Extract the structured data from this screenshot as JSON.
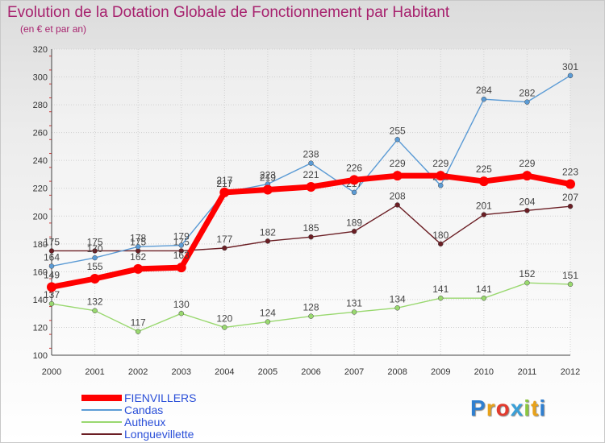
{
  "header": {
    "title": "Evolution de la Dotation Globale de Fonctionnement par Habitant",
    "subtitle": "(en € et par an)"
  },
  "logo": {
    "text": "Proxiti",
    "letter_colors": [
      "#2f7fd0",
      "#e8a21a",
      "#e23b2f",
      "#3aa0d8",
      "#8cc63f",
      "#e8a21a",
      "#2f7fd0"
    ]
  },
  "chart_data": {
    "type": "line",
    "x": [
      2000,
      2001,
      2002,
      2003,
      2004,
      2005,
      2006,
      2007,
      2008,
      2009,
      2010,
      2011,
      2012
    ],
    "ylim": [
      100,
      320
    ],
    "yticks": [
      100,
      120,
      140,
      160,
      180,
      200,
      220,
      240,
      260,
      280,
      300,
      320
    ],
    "grid": true,
    "legend_position": "bottom-left",
    "series": [
      {
        "name": "Longuevillette",
        "color": "#6b1e24",
        "values": [
          175,
          175,
          175,
          175,
          177,
          182,
          185,
          189,
          208,
          180,
          201,
          204,
          207
        ]
      },
      {
        "name": "Autheux",
        "color": "#99d86f",
        "values": [
          137,
          132,
          117,
          130,
          120,
          124,
          128,
          131,
          134,
          141,
          141,
          152,
          151
        ]
      },
      {
        "name": "Candas",
        "color": "#5b9bd5",
        "values": [
          164,
          170,
          178,
          179,
          217,
          223,
          238,
          217,
          255,
          222,
          284,
          282,
          301
        ]
      },
      {
        "name": "FIENVILLERS",
        "color": "#ff0000",
        "values": [
          149,
          155,
          162,
          163,
          217,
          219,
          221,
          226,
          229,
          229,
          225,
          229,
          223
        ]
      }
    ],
    "legend_order": [
      "FIENVILLERS",
      "Candas",
      "Autheux",
      "Longuevillette"
    ]
  }
}
